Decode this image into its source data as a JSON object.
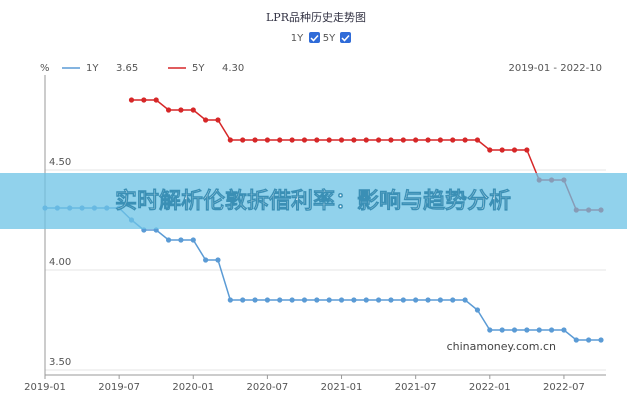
{
  "chart_data": {
    "type": "line",
    "title": "LPR品种历史走势图",
    "unit": "%",
    "range_label": "2019-01 - 2022-10",
    "watermark": "chinamoney.com.cn",
    "categories": [
      "2019-01",
      null,
      null,
      null,
      null,
      null,
      "2019-07",
      null,
      null,
      null,
      null,
      null,
      "2020-01",
      null,
      null,
      null,
      null,
      null,
      "2020-07",
      null,
      null,
      null,
      null,
      null,
      "2021-01",
      null,
      null,
      null,
      null,
      null,
      "2021-07",
      null,
      null,
      null,
      null,
      null,
      "2022-01",
      null,
      null,
      null,
      null,
      null,
      "2022-07",
      null,
      null,
      null
    ],
    "series": [
      {
        "name": "1Y",
        "color": "#5b9bd5",
        "current": "3.65",
        "values": [
          4.31,
          4.31,
          4.31,
          4.31,
          4.31,
          4.31,
          4.31,
          4.25,
          4.2,
          4.2,
          4.15,
          4.15,
          4.15,
          4.05,
          4.05,
          3.85,
          3.85,
          3.85,
          3.85,
          3.85,
          3.85,
          3.85,
          3.85,
          3.85,
          3.85,
          3.85,
          3.85,
          3.85,
          3.85,
          3.85,
          3.85,
          3.85,
          3.85,
          3.85,
          3.85,
          3.8,
          3.7,
          3.7,
          3.7,
          3.7,
          3.7,
          3.7,
          3.7,
          3.65,
          3.65,
          3.65
        ]
      },
      {
        "name": "5Y",
        "color": "#d62728",
        "current": "4.30",
        "values": [
          null,
          null,
          null,
          null,
          null,
          null,
          null,
          4.85,
          4.85,
          4.85,
          4.8,
          4.8,
          4.8,
          4.75,
          4.75,
          4.65,
          4.65,
          4.65,
          4.65,
          4.65,
          4.65,
          4.65,
          4.65,
          4.65,
          4.65,
          4.65,
          4.65,
          4.65,
          4.65,
          4.65,
          4.65,
          4.65,
          4.65,
          4.65,
          4.65,
          4.65,
          4.6,
          4.6,
          4.6,
          4.6,
          4.45,
          4.45,
          4.45,
          4.3,
          4.3,
          4.3
        ]
      }
    ],
    "ylim": [
      3.475,
      4.975
    ],
    "yticks": [
      {
        "value": 3.5,
        "label": "3.50"
      },
      {
        "value": 4.0,
        "label": "4.00"
      },
      {
        "value": 4.5,
        "label": "4.50"
      }
    ],
    "grid": true
  },
  "banner": {
    "text": "实时解析伦敦拆借利率：影响与趋势分析"
  }
}
